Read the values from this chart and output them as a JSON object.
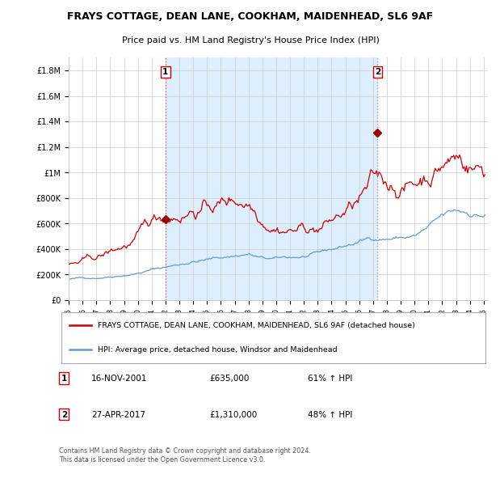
{
  "title": "FRAYS COTTAGE, DEAN LANE, COOKHAM, MAIDENHEAD, SL6 9AF",
  "subtitle": "Price paid vs. HM Land Registry's House Price Index (HPI)",
  "ylabel_ticks": [
    "£0",
    "£200K",
    "£400K",
    "£600K",
    "£800K",
    "£1M",
    "£1.2M",
    "£1.4M",
    "£1.6M",
    "£1.8M"
  ],
  "ytick_values": [
    0,
    200000,
    400000,
    600000,
    800000,
    1000000,
    1200000,
    1400000,
    1600000,
    1800000
  ],
  "ylim": [
    0,
    1900000
  ],
  "xlim_start": 1995.0,
  "xlim_end": 2025.3,
  "sale1_x": 2002.0,
  "sale1_y": 635000,
  "sale1_label": "1",
  "sale1_date": "16-NOV-2001",
  "sale1_price": "£635,000",
  "sale1_hpi": "61% ↑ HPI",
  "sale2_x": 2017.32,
  "sale2_y": 1310000,
  "sale2_label": "2",
  "sale2_date": "27-APR-2017",
  "sale2_price": "£1,310,000",
  "sale2_hpi": "48% ↑ HPI",
  "line_color_house": "#cc0000",
  "line_color_hpi": "#6699cc",
  "vline1_color": "#ee6666",
  "vline2_color": "#aaaaaa",
  "marker_color": "#990000",
  "background_color": "#ffffff",
  "shaded_color": "#ddeeff",
  "grid_color": "#cccccc",
  "legend_house": "FRAYS COTTAGE, DEAN LANE, COOKHAM, MAIDENHEAD, SL6 9AF (detached house)",
  "legend_hpi": "HPI: Average price, detached house, Windsor and Maidenhead",
  "footnote": "Contains HM Land Registry data © Crown copyright and database right 2024.\nThis data is licensed under the Open Government Licence v3.0."
}
